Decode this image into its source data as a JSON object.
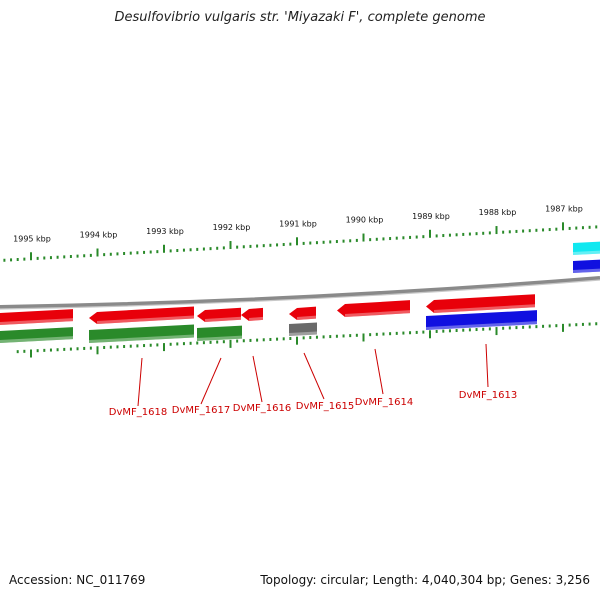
{
  "title": "Desulfovibrio vulgaris str. 'Miyazaki F', complete genome",
  "footer": {
    "accession": "Accession: NC_011769",
    "topology": "Topology: circular; Length: 4,040,304 bp; Genes: 3,256"
  },
  "colors": {
    "forward_gene": "#e8000a",
    "cds_green": "#2a8a2a",
    "cds_blue": "#1010e0",
    "cds_cyan": "#10e8f0",
    "cds_gray": "#6a6a6a",
    "tick": "#2a8a2a",
    "backbone": "#8a8a8a",
    "label": "#cc0000"
  },
  "scale": {
    "unit": "kbp",
    "ticks": [
      {
        "label": "1995 kbp",
        "kbp": 1995
      },
      {
        "label": "1994 kbp",
        "kbp": 1994
      },
      {
        "label": "1993 kbp",
        "kbp": 1993
      },
      {
        "label": "1992 kbp",
        "kbp": 1992
      },
      {
        "label": "1991 kbp",
        "kbp": 1991
      },
      {
        "label": "1990 kbp",
        "kbp": 1990
      },
      {
        "label": "1989 kbp",
        "kbp": 1989
      },
      {
        "label": "1988 kbp",
        "kbp": 1988
      },
      {
        "label": "1987 kbp",
        "kbp": 1987
      }
    ]
  },
  "genes": [
    {
      "label": "DvMF_1618"
    },
    {
      "label": "DvMF_1617"
    },
    {
      "label": "DvMF_1616"
    },
    {
      "label": "DvMF_1615"
    },
    {
      "label": "DvMF_1614"
    },
    {
      "label": "DvMF_1613"
    }
  ]
}
